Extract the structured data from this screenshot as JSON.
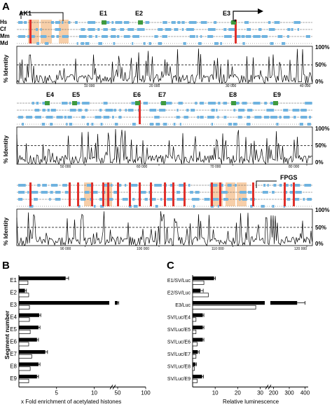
{
  "panel_labels": {
    "a": "A",
    "b": "B",
    "c": "C"
  },
  "species": [
    "Hs",
    "Cf",
    "Mm",
    "Md"
  ],
  "percent_identity_label": "% Identity",
  "percent_ticks": [
    "100%",
    "50%",
    "0%"
  ],
  "panel_a": {
    "rows": [
      {
        "segments": [
          "AK1",
          "E1",
          "E2",
          "E3"
        ],
        "asterisk": "*",
        "axis_ticks": [
          "10 000",
          "20 000",
          "30 000",
          "40 000"
        ]
      },
      {
        "segments": [
          "E4",
          "E5",
          "E6",
          "E7",
          "E8",
          "E9"
        ],
        "axis_ticks": [
          "50 000",
          "60 000",
          "70 000",
          "80 000"
        ]
      },
      {
        "segments": [
          "FPGS"
        ],
        "axis_ticks": [
          "90 000",
          "100 000",
          "110 000",
          "120 000"
        ]
      }
    ]
  },
  "chart_data": [
    {
      "type": "bar",
      "orientation": "horizontal",
      "categories": [
        "E1",
        "E2",
        "E3",
        "E4",
        "E5",
        "E6",
        "E7",
        "E8",
        "E9"
      ],
      "series": [
        {
          "values": [
            6.2,
            0.8,
            50,
            2.7,
            2.6,
            2.4,
            3.5,
            2.6,
            2.4
          ]
        },
        {
          "values": [
            1.2,
            1.3,
            1.4,
            1.4,
            1.5,
            1.3,
            1.7,
            1.5,
            1.3
          ]
        }
      ],
      "errors": [
        0.4,
        0.2,
        2,
        0.2,
        0.2,
        0.2,
        0.3,
        0.2,
        0.2
      ],
      "xlabel": "x Fold enrichment of acetylated histones",
      "ylabel": "Segment number",
      "x_ticks": [
        "5",
        "10",
        "50",
        "100"
      ],
      "axis_break": true,
      "colors": {
        "filled": "#000000",
        "open": "#ffffff"
      }
    },
    {
      "type": "bar",
      "orientation": "horizontal",
      "categories": [
        "E1/SV/Luc",
        "E2/SV/Luc",
        "E3/Luc",
        "SV/Luc/E4",
        "SV/Luc/E5",
        "SV/Luc/E6",
        "SV/Luc/E7",
        "SV/Luc/E8",
        "SV/Luc/E9"
      ],
      "series": [
        {
          "values": [
            9.5,
            3.5,
            350,
            4.5,
            4.5,
            4.5,
            2.3,
            1.3,
            4.2
          ]
        },
        {
          "values": [
            5,
            7,
            28,
            1.5,
            1.5,
            2,
            1.5,
            0.8,
            2
          ]
        }
      ],
      "errors": [
        0.6,
        1.2,
        50,
        0.5,
        0.5,
        0.5,
        0.6,
        0.4,
        0.6
      ],
      "xlabel": "Relative luminescence",
      "x_ticks": [
        "10",
        "20",
        "30",
        "200",
        "300",
        "400"
      ],
      "axis_break": true,
      "colors": {
        "filled": "#000000",
        "open": "#ffffff"
      }
    }
  ],
  "colors": {
    "exon": "#6fb3e0",
    "element": "#3f9a3f",
    "highlight": "#f6c79a",
    "red": "#e0302b",
    "trace": "#000000"
  }
}
